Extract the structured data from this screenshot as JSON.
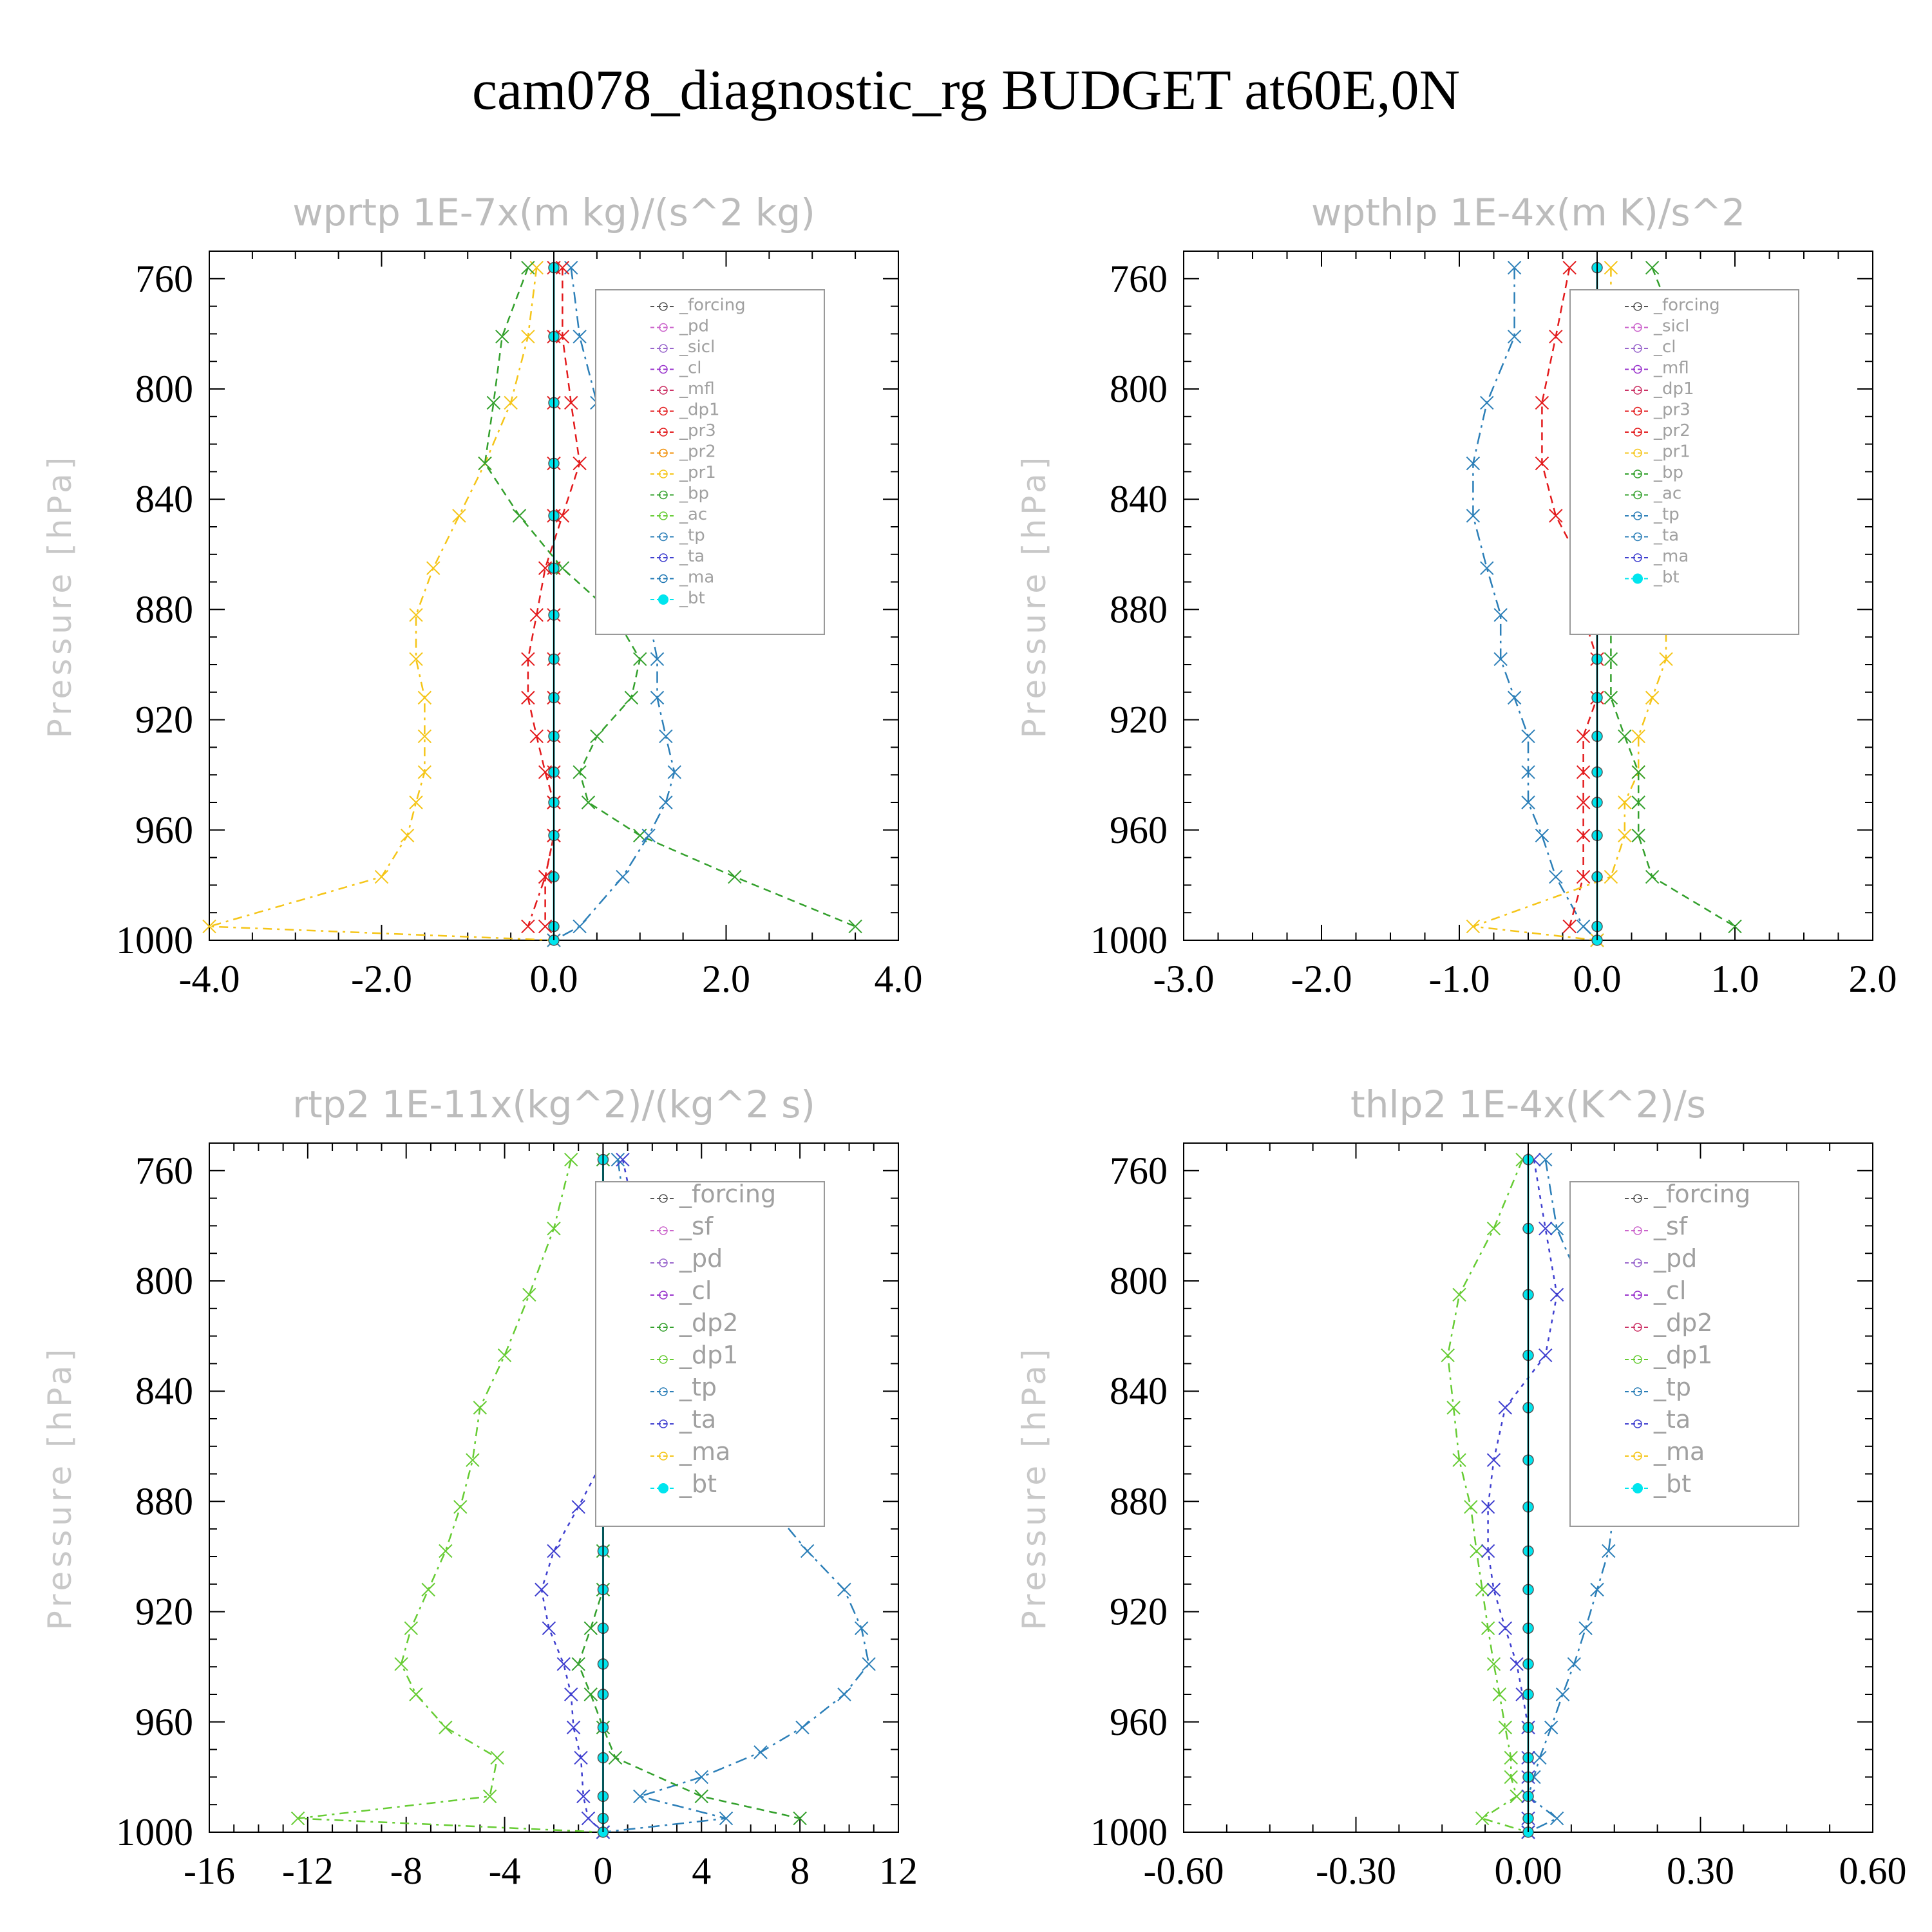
{
  "title": "cam078_diagnostic_rg  BUDGET at60E,0N",
  "chart_data": [
    {
      "type": "line",
      "title": "wprtp   1E-7x(m kg)/(s^2 kg)",
      "ylabel": "Pressure [hPa]",
      "xlim": [
        -4.0,
        4.0
      ],
      "xticks": [
        "-4.0",
        "-2.0",
        "0.0",
        "2.0",
        "4.0"
      ],
      "ylim": [
        750,
        1000
      ],
      "yticks": [
        "760",
        "800",
        "840",
        "880",
        "920",
        "960",
        "1000"
      ],
      "legend": [
        "_forcing",
        "_pd",
        "_sicl",
        "_cl",
        "_mfl",
        "_dp1",
        "_pr3",
        "_pr2",
        "_pr1",
        "_bp",
        "_ac",
        "_tp",
        "_ta",
        "_ma",
        "_bt"
      ],
      "legend_location": "upper-right",
      "series": [
        {
          "name": "_pr1",
          "color": "#f5c518",
          "x": [
            -0.2,
            -0.3,
            -0.5,
            -0.8,
            -1.1,
            -1.4,
            -1.6,
            -1.6,
            -1.5,
            -1.5,
            -1.5,
            -1.6,
            -1.7,
            -2.0,
            -4.0,
            0.0
          ],
          "y": [
            756,
            781,
            805,
            827,
            846,
            865,
            882,
            898,
            912,
            926,
            939,
            950,
            962,
            977,
            995,
            1000
          ]
        },
        {
          "name": "_bp",
          "color": "#33a02c",
          "x": [
            -0.3,
            -0.6,
            -0.7,
            -0.8,
            -0.4,
            0.1,
            0.7,
            1.0,
            0.9,
            0.5,
            0.3,
            0.4,
            1.0,
            2.1,
            3.5
          ],
          "y": [
            756,
            781,
            805,
            827,
            846,
            865,
            882,
            898,
            912,
            926,
            939,
            950,
            962,
            977,
            995
          ]
        },
        {
          "name": "_tp",
          "color": "#2c7fb8",
          "x": [
            0.2,
            0.3,
            0.5,
            0.8,
            1.0,
            1.1,
            1.1,
            1.2,
            1.2,
            1.3,
            1.4,
            1.3,
            1.1,
            0.8,
            0.3,
            0.0
          ],
          "y": [
            756,
            781,
            805,
            827,
            846,
            865,
            882,
            898,
            912,
            926,
            939,
            950,
            962,
            977,
            995,
            1000
          ]
        },
        {
          "name": "_pr3",
          "color": "#e31a1c",
          "x": [
            0.1,
            0.1,
            0.2,
            0.3,
            0.1,
            -0.1,
            -0.2,
            -0.3,
            -0.3,
            -0.2,
            -0.1,
            0.0,
            0.0,
            -0.1,
            -0.1
          ],
          "y": [
            756,
            781,
            805,
            827,
            846,
            865,
            882,
            898,
            912,
            926,
            939,
            950,
            962,
            977,
            995
          ]
        },
        {
          "name": "_dp1",
          "color": "#e31a1c",
          "x": [
            0.0,
            0.0,
            0.0,
            0.0,
            0.0,
            0.0,
            0.0,
            0.0,
            0.0,
            0.0,
            0.0,
            0.0,
            0.0,
            -0.1,
            -0.3
          ],
          "y": [
            756,
            781,
            805,
            827,
            846,
            865,
            882,
            898,
            912,
            926,
            939,
            950,
            962,
            977,
            995
          ]
        },
        {
          "name": "_bt",
          "color": "#00e5ee",
          "x": [
            0.0,
            0.0,
            0.0,
            0.0,
            0.0,
            0.0,
            0.0,
            0.0,
            0.0,
            0.0,
            0.0,
            0.0,
            0.0,
            0.0,
            0.0,
            0.0
          ],
          "y": [
            756,
            781,
            805,
            827,
            846,
            865,
            882,
            898,
            912,
            926,
            939,
            950,
            962,
            977,
            995,
            1000
          ]
        }
      ]
    },
    {
      "type": "line",
      "title": "wpthlp   1E-4x(m K)/s^2",
      "ylabel": "Pressure [hPa]",
      "xlim": [
        -3.0,
        2.0
      ],
      "xticks": [
        "-3.0",
        "-2.0",
        "-1.0",
        "0.0",
        "1.0",
        "2.0"
      ],
      "ylim": [
        750,
        1000
      ],
      "yticks": [
        "760",
        "800",
        "840",
        "880",
        "920",
        "960",
        "1000"
      ],
      "legend": [
        "_forcing",
        "_sicl",
        "_cl",
        "_mfl",
        "_dp1",
        "_pr3",
        "_pr2",
        "_pr1",
        "_bp",
        "_ac",
        "_tp",
        "_ta",
        "_ma",
        "_bt"
      ],
      "legend_location": "upper-right",
      "series": [
        {
          "name": "_tp",
          "color": "#2c7fb8",
          "x": [
            -0.6,
            -0.6,
            -0.8,
            -0.9,
            -0.9,
            -0.8,
            -0.7,
            -0.7,
            -0.6,
            -0.5,
            -0.5,
            -0.5,
            -0.4,
            -0.3,
            -0.1,
            0.0
          ],
          "y": [
            756,
            781,
            805,
            827,
            846,
            865,
            882,
            898,
            912,
            926,
            939,
            950,
            962,
            977,
            995,
            1000
          ]
        },
        {
          "name": "_pr3",
          "color": "#e31a1c",
          "x": [
            -0.2,
            -0.3,
            -0.4,
            -0.4,
            -0.3,
            -0.1,
            -0.1,
            0.0,
            0.0,
            -0.1,
            -0.1,
            -0.1,
            -0.1,
            -0.1,
            -0.2
          ],
          "y": [
            756,
            781,
            805,
            827,
            846,
            865,
            882,
            898,
            912,
            926,
            939,
            950,
            962,
            977,
            995
          ]
        },
        {
          "name": "_pr1",
          "color": "#f5c518",
          "x": [
            0.1,
            0.1,
            0.1,
            0.2,
            0.3,
            0.4,
            0.5,
            0.5,
            0.4,
            0.3,
            0.3,
            0.2,
            0.2,
            0.1,
            -0.9,
            0.0
          ],
          "y": [
            756,
            781,
            805,
            827,
            846,
            865,
            882,
            898,
            912,
            926,
            939,
            950,
            962,
            977,
            995,
            1000
          ]
        },
        {
          "name": "_bp",
          "color": "#33a02c",
          "x": [
            0.4,
            0.6,
            1.0,
            1.1,
            0.8,
            0.3,
            0.1,
            0.1,
            0.1,
            0.2,
            0.3,
            0.3,
            0.3,
            0.4,
            1.0
          ],
          "y": [
            756,
            781,
            805,
            827,
            846,
            865,
            882,
            898,
            912,
            926,
            939,
            950,
            962,
            977,
            995
          ]
        },
        {
          "name": "_bt",
          "color": "#00e5ee",
          "x": [
            0.0,
            0.0,
            0.0,
            0.0,
            0.0,
            0.0,
            0.0,
            0.0,
            0.0,
            0.0,
            0.0,
            0.0,
            0.0,
            0.0,
            0.0,
            0.0
          ],
          "y": [
            756,
            781,
            805,
            827,
            846,
            865,
            882,
            898,
            912,
            926,
            939,
            950,
            962,
            977,
            995,
            1000
          ]
        }
      ]
    },
    {
      "type": "line",
      "title": "rtp2   1E-11x(kg^2)/(kg^2 s)",
      "ylabel": "Pressure [hPa]",
      "xlim": [
        -16,
        12
      ],
      "xticks": [
        "-16",
        "-12",
        "-8",
        "-4",
        "0",
        "4",
        "8",
        "12"
      ],
      "ylim": [
        750,
        1000
      ],
      "yticks": [
        "760",
        "800",
        "840",
        "880",
        "920",
        "960",
        "1000"
      ],
      "legend": [
        "_forcing",
        "_sf",
        "_pd",
        "_cl",
        "_dp2",
        "_dp1",
        "_tp",
        "_ta",
        "_ma",
        "_bt"
      ],
      "legend_location": "upper-right",
      "series": [
        {
          "name": "_dp1",
          "color": "#66cc33",
          "x": [
            -1.3,
            -2.0,
            -3.0,
            -4.0,
            -5.0,
            -5.3,
            -5.8,
            -6.4,
            -7.1,
            -7.8,
            -8.2,
            -7.6,
            -6.4,
            -4.3,
            -4.6,
            -12.4,
            0.0
          ],
          "y": [
            756,
            781,
            805,
            827,
            846,
            865,
            882,
            898,
            912,
            926,
            939,
            950,
            962,
            973,
            987,
            995,
            1000
          ]
        },
        {
          "name": "_tp",
          "color": "#2c7fb8",
          "x": [
            0.6,
            1.0,
            1.7,
            2.4,
            3.5,
            5.2,
            6.8,
            8.3,
            9.8,
            10.5,
            10.8,
            9.8,
            8.1,
            6.4,
            4.0,
            1.5,
            5.0,
            0.0
          ],
          "y": [
            756,
            781,
            805,
            827,
            846,
            865,
            882,
            898,
            912,
            926,
            939,
            950,
            962,
            971,
            980,
            987,
            995,
            1000
          ]
        },
        {
          "name": "_ta",
          "color": "#3f3fcf",
          "x": [
            0.8,
            1.4,
            2.2,
            2.0,
            1.3,
            0.0,
            -1.0,
            -2.0,
            -2.5,
            -2.2,
            -1.6,
            -1.3,
            -1.2,
            -0.9,
            -0.8,
            -0.6,
            0.0
          ],
          "y": [
            756,
            781,
            805,
            827,
            846,
            865,
            882,
            898,
            912,
            926,
            939,
            950,
            962,
            973,
            987,
            995,
            1000
          ]
        },
        {
          "name": "_dp2",
          "color": "#33a02c",
          "x": [
            0.0,
            0.0,
            0.0,
            0.0,
            0.0,
            0.0,
            0.0,
            0.0,
            0.0,
            -0.5,
            -1.0,
            -0.5,
            0.0,
            0.5,
            4.0,
            8.0
          ],
          "y": [
            756,
            781,
            805,
            827,
            846,
            865,
            882,
            898,
            912,
            926,
            939,
            950,
            962,
            973,
            987,
            995
          ]
        },
        {
          "name": "_bt",
          "color": "#00e5ee",
          "x": [
            0,
            0,
            0,
            0,
            0,
            0,
            0,
            0,
            0,
            0,
            0,
            0,
            0,
            0,
            0,
            0,
            0
          ],
          "y": [
            756,
            781,
            805,
            827,
            846,
            865,
            882,
            898,
            912,
            926,
            939,
            950,
            962,
            973,
            987,
            995,
            1000
          ]
        }
      ]
    },
    {
      "type": "line",
      "title": "thlp2   1E-4x(K^2)/s",
      "ylabel": "Pressure [hPa]",
      "xlim": [
        -0.6,
        0.6
      ],
      "xticks": [
        "-0.60",
        "-0.30",
        "0.00",
        "0.30",
        "0.60"
      ],
      "ylim": [
        750,
        1000
      ],
      "yticks": [
        "760",
        "800",
        "840",
        "880",
        "920",
        "960",
        "1000"
      ],
      "legend": [
        "_forcing",
        "_sf",
        "_pd",
        "_cl",
        "_dp2",
        "_dp1",
        "_tp",
        "_ta",
        "_ma",
        "_bt"
      ],
      "legend_location": "upper-right",
      "series": [
        {
          "name": "_dp1",
          "color": "#66cc33",
          "x": [
            -0.01,
            -0.06,
            -0.12,
            -0.14,
            -0.13,
            -0.12,
            -0.1,
            -0.09,
            -0.08,
            -0.07,
            -0.06,
            -0.05,
            -0.04,
            -0.03,
            -0.03,
            -0.02,
            -0.08,
            0.0
          ],
          "y": [
            756,
            781,
            805,
            827,
            846,
            865,
            882,
            898,
            912,
            926,
            939,
            950,
            962,
            973,
            980,
            987,
            995,
            1000
          ]
        },
        {
          "name": "_tp",
          "color": "#2c7fb8",
          "x": [
            0.03,
            0.05,
            0.1,
            0.13,
            0.16,
            0.16,
            0.15,
            0.14,
            0.12,
            0.1,
            0.08,
            0.06,
            0.04,
            0.02,
            0.01,
            0.0,
            0.05,
            0.0
          ],
          "y": [
            756,
            781,
            805,
            827,
            846,
            865,
            882,
            898,
            912,
            926,
            939,
            950,
            962,
            973,
            980,
            987,
            995,
            1000
          ]
        },
        {
          "name": "_ta",
          "color": "#3f3fcf",
          "x": [
            0.01,
            0.03,
            0.05,
            0.03,
            -0.04,
            -0.06,
            -0.07,
            -0.07,
            -0.06,
            -0.04,
            -0.02,
            -0.01,
            0.0,
            0.0,
            0.0,
            0.0,
            0.0,
            0.0
          ],
          "y": [
            756,
            781,
            805,
            827,
            846,
            865,
            882,
            898,
            912,
            926,
            939,
            950,
            962,
            973,
            980,
            987,
            995,
            1000
          ]
        },
        {
          "name": "_bt",
          "color": "#00e5ee",
          "x": [
            0,
            0,
            0,
            0,
            0,
            0,
            0,
            0,
            0,
            0,
            0,
            0,
            0,
            0,
            0,
            0,
            0,
            0
          ],
          "y": [
            756,
            781,
            805,
            827,
            846,
            865,
            882,
            898,
            912,
            926,
            939,
            950,
            962,
            973,
            980,
            987,
            995,
            1000
          ]
        }
      ]
    }
  ]
}
